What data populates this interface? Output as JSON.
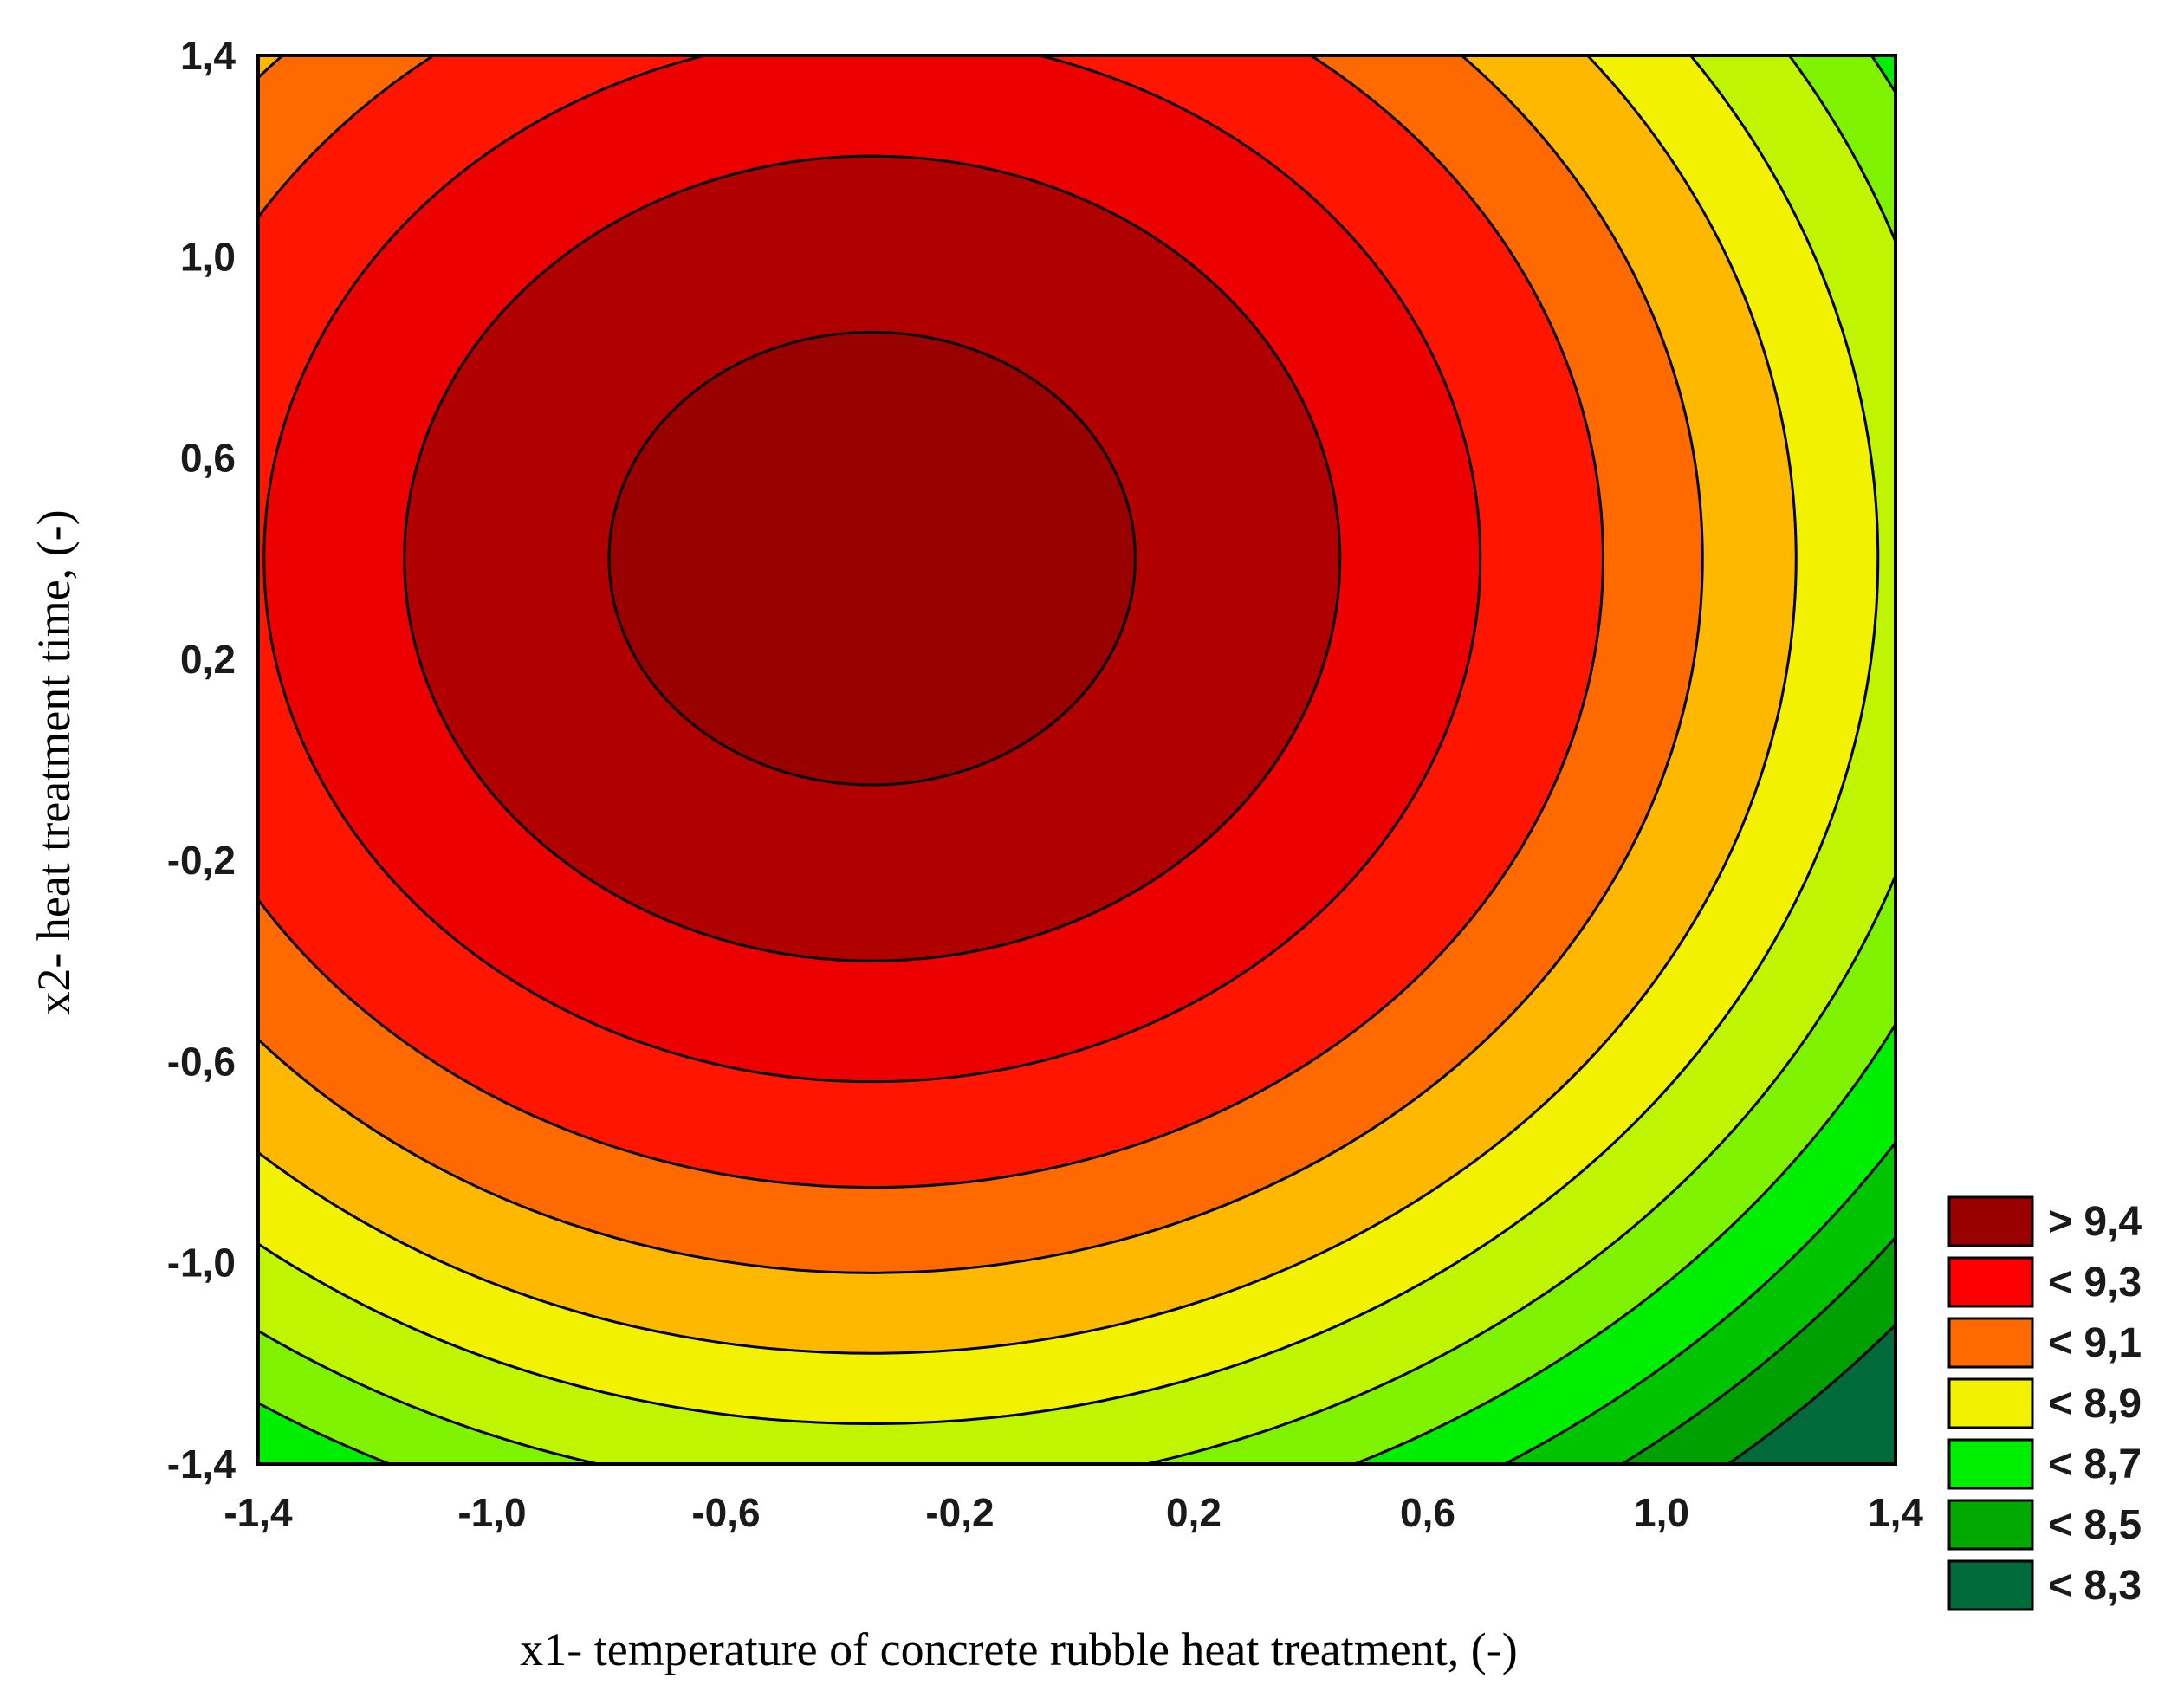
{
  "chart_data": {
    "type": "contour",
    "xlabel": "x1- temperature of concrete rubble heat treatment, (-)",
    "ylabel": "x2- heat treatment time, (-)",
    "xlim": [
      -1.4,
      1.4
    ],
    "ylim": [
      -1.4,
      1.4
    ],
    "x_ticks": [
      "-1,4",
      "-1,0",
      "-0,6",
      "-0,2",
      "0,2",
      "0,6",
      "1,0",
      "1,4"
    ],
    "y_ticks": [
      "1,4",
      "1,0",
      "0,6",
      "0,2",
      "-0,2",
      "-0,6",
      "-1,0",
      "-1,4"
    ],
    "surface": {
      "center": {
        "x1": -0.35,
        "x2": 0.4
      },
      "peak_value": 9.47,
      "contour_levels": [
        8.3,
        8.4,
        8.5,
        8.6,
        8.7,
        8.8,
        8.9,
        9.0,
        9.1,
        9.2,
        9.3,
        9.4
      ],
      "level_radius": [
        {
          "value": 9.4,
          "radius": 0.45
        },
        {
          "value": 9.3,
          "radius": 0.8
        },
        {
          "value": 9.2,
          "radius": 1.04
        },
        {
          "value": 9.1,
          "radius": 1.25
        },
        {
          "value": 9.0,
          "radius": 1.42
        },
        {
          "value": 8.9,
          "radius": 1.58
        },
        {
          "value": 8.8,
          "radius": 1.72
        },
        {
          "value": 8.7,
          "radius": 1.86
        },
        {
          "value": 8.6,
          "radius": 1.98
        },
        {
          "value": 8.5,
          "radius": 2.1
        },
        {
          "value": 8.4,
          "radius": 2.21
        },
        {
          "value": 8.3,
          "radius": 2.32
        }
      ]
    },
    "legend": {
      "position": "right-bottom",
      "entries": [
        {
          "label": "> 9,4",
          "color": "#990000"
        },
        {
          "label": "< 9,3",
          "color": "#ff0000"
        },
        {
          "label": "< 9,1",
          "color": "#ff6a00"
        },
        {
          "label": "< 8,9",
          "color": "#f2f200"
        },
        {
          "label": "< 8,7",
          "color": "#00ee00"
        },
        {
          "label": "< 8,5",
          "color": "#00a800"
        },
        {
          "label": "< 8,3",
          "color": "#006a3a"
        }
      ]
    },
    "band_colors": [
      {
        "above": 9.4,
        "color": "#990000"
      },
      {
        "above": 9.3,
        "color": "#b00000"
      },
      {
        "above": 9.2,
        "color": "#ec0000"
      },
      {
        "above": 9.1,
        "color": "#ff1500"
      },
      {
        "above": 9.0,
        "color": "#ff6a00"
      },
      {
        "above": 8.9,
        "color": "#ffb800"
      },
      {
        "above": 8.8,
        "color": "#f2f200"
      },
      {
        "above": 8.7,
        "color": "#bff500"
      },
      {
        "above": 8.6,
        "color": "#7ff200"
      },
      {
        "above": 8.5,
        "color": "#00ee00"
      },
      {
        "above": 8.4,
        "color": "#00c400"
      },
      {
        "above": 8.3,
        "color": "#00a000"
      },
      {
        "above": -999,
        "color": "#006a3a"
      }
    ],
    "grid": false
  }
}
